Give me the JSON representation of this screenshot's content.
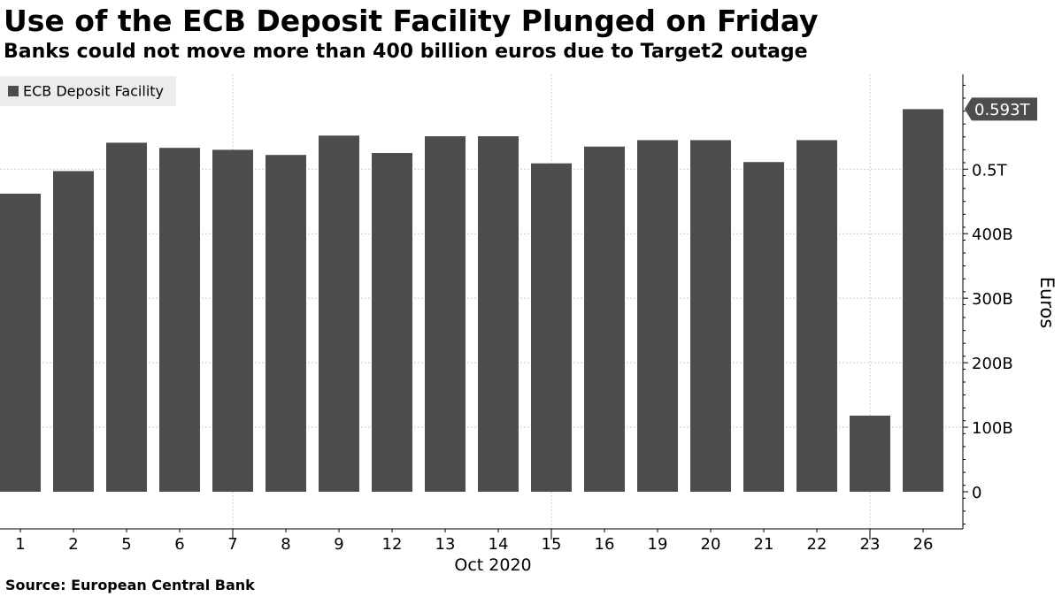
{
  "title": "Use of the ECB Deposit Facility Plunged on Friday",
  "subtitle": "Banks could not move more than 400 billion euros due to Target2 outage",
  "source": "Source: European Central Bank",
  "colors": {
    "bar": "#4d4d4d",
    "grid": "#cccccc",
    "axis": "#000000",
    "legend_bg": "#ececec",
    "last_value_tag": "#4d4d4d"
  },
  "chart_data": {
    "type": "bar",
    "categories": [
      "1",
      "2",
      "5",
      "6",
      "7",
      "8",
      "9",
      "12",
      "13",
      "14",
      "15",
      "16",
      "19",
      "20",
      "21",
      "22",
      "23",
      "26"
    ],
    "x_group_label": "Oct 2020",
    "series": [
      {
        "name": "ECB Deposit Facility",
        "values": [
          462,
          497,
          541,
          533,
          530,
          522,
          552,
          525,
          551,
          551,
          509,
          535,
          545,
          545,
          511,
          545,
          118,
          593
        ]
      }
    ],
    "unit": "billion euros",
    "ylabel": "Euros",
    "ylim": [
      -55,
      650
    ],
    "yticks": [
      {
        "value": 0,
        "label": "0"
      },
      {
        "value": 100,
        "label": "100B"
      },
      {
        "value": 200,
        "label": "200B"
      },
      {
        "value": 300,
        "label": "300B"
      },
      {
        "value": 400,
        "label": "400B"
      },
      {
        "value": 500,
        "label": "0.5T"
      }
    ],
    "last_value_label": "0.593T",
    "y_axis_position": "right",
    "legend_position": "top-left",
    "grid": true
  }
}
